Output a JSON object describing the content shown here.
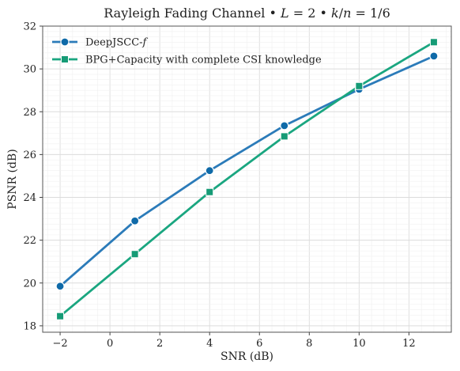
{
  "chart_data": {
    "type": "line",
    "title": "Rayleigh Fading Channel • L = 2 • k/n = 1/6",
    "xlabel": "SNR (dB)",
    "ylabel": "PSNR (dB)",
    "xlim": [
      -2.7,
      13.7
    ],
    "ylim": [
      17.7,
      32
    ],
    "xticks": [
      -2,
      0,
      2,
      4,
      6,
      8,
      10,
      12
    ],
    "xtick_labels": [
      "−2",
      "0",
      "2",
      "4",
      "6",
      "8",
      "10",
      "12"
    ],
    "yticks": [
      18,
      20,
      22,
      24,
      26,
      28,
      30,
      32
    ],
    "ytick_labels": [
      "18",
      "20",
      "22",
      "24",
      "26",
      "28",
      "30",
      "32"
    ],
    "grid": true,
    "legend_position": "top-left",
    "series": [
      {
        "name": "DeepJSCC-f",
        "color": "#2b7bb9",
        "marker": "circle",
        "x": [
          -2,
          1,
          4,
          7,
          10,
          13
        ],
        "y": [
          19.85,
          22.9,
          25.25,
          27.35,
          29.05,
          30.6
        ]
      },
      {
        "name": "BPG+Capacity with complete CSI knowledge",
        "color": "#1aa680",
        "marker": "square",
        "x": [
          -2,
          1,
          4,
          7,
          10,
          13
        ],
        "y": [
          18.45,
          21.35,
          24.25,
          26.85,
          29.2,
          31.25
        ]
      }
    ]
  }
}
